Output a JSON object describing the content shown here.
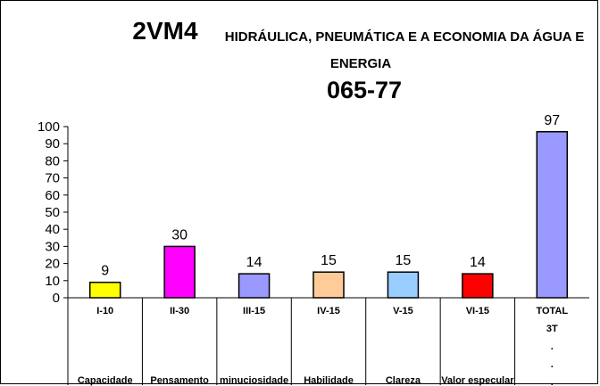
{
  "chart_data": {
    "type": "bar",
    "title_code": "2VM4",
    "title_line1": "HIDRÁULICA, PNEUMÁTICA E A ECONOMIA DA ÁGUA E",
    "title_line2": "ENERGIA",
    "title_number": "065-77",
    "categories": [
      "I-10",
      "II-30",
      "III-15",
      "IV-15",
      "V-15",
      "VI-15",
      "TOTAL"
    ],
    "category_names": [
      "Capacidade",
      "Pensamento",
      "minuciosidade",
      "Habilidade",
      "Clareza",
      "Valor especular",
      ""
    ],
    "total_extra_lines": [
      "3T",
      ".",
      ".",
      "."
    ],
    "values": [
      9,
      30,
      14,
      15,
      15,
      14,
      97
    ],
    "bar_colors": [
      "#ffff00",
      "#ff00ff",
      "#9999ff",
      "#ffcc99",
      "#99ccff",
      "#ff0000",
      "#9999ff"
    ],
    "ylim": [
      0,
      100
    ],
    "yticks": [
      0,
      10,
      20,
      30,
      40,
      50,
      60,
      70,
      80,
      90,
      100
    ],
    "grid": false,
    "legend": "none"
  }
}
